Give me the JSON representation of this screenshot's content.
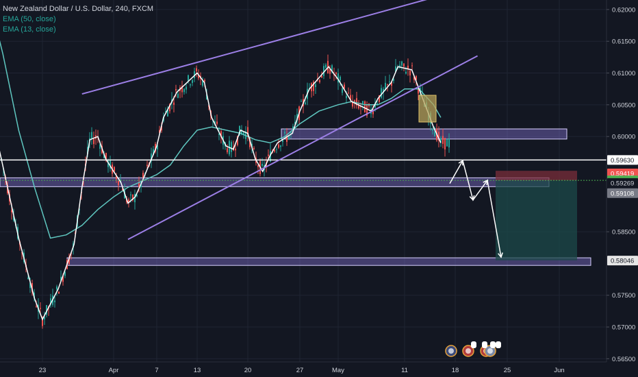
{
  "legend": {
    "title": "New Zealand Dollar / U.S. Dollar, 240, FXCM",
    "ema_slow": "EMA (50, close)",
    "ema_fast": "EMA (13, close)"
  },
  "colors": {
    "background": "#131722",
    "grid": "#1f2433",
    "up": "#26a69a",
    "down": "#ef5350",
    "ema_fast": "#ffffff",
    "ema_slow": "#5fc7c0",
    "channel": "#9c7fe6",
    "zone_fill": "#7e6fc9",
    "stop_zone": "#7a2e3a",
    "target_zone": "#1c4a4a",
    "price_marker": "#b7a15a"
  },
  "chart_data": {
    "type": "candlestick",
    "symbol": "NZDUSD",
    "timeframe": "240",
    "indicators": [
      "EMA (50, close)",
      "EMA (13, close)"
    ],
    "x_tick_labels": [
      "23",
      "Apr",
      "7",
      "13",
      "20",
      "27",
      "May",
      "11",
      "18",
      "25",
      "Jun"
    ],
    "y_tick_labels": [
      "0.62000",
      "0.61500",
      "0.61000",
      "0.60500",
      "0.60000",
      "0.58500",
      "0.57500",
      "0.57000",
      "0.56500"
    ],
    "ylim": [
      0.5645,
      0.6215
    ],
    "price_tags": [
      {
        "label": "0.59630",
        "value": 0.5963,
        "bg": "#ffffff",
        "fg": "#131722"
      },
      {
        "label": "0.59419",
        "value": 0.59419,
        "bg": "#ef5350",
        "fg": "#ffffff"
      },
      {
        "label": "0.59310",
        "value": 0.5931,
        "bg": "#4caf50",
        "fg": "#ffffff"
      },
      {
        "label": "0.59269",
        "value": 0.59269,
        "bg": "#131722",
        "fg": "#d1d4dc"
      },
      {
        "label": "0.59108",
        "value": 0.59108,
        "bg": "#787b86",
        "fg": "#ffffff"
      },
      {
        "label": "0.58046",
        "value": 0.58046,
        "bg": "#e6e6e6",
        "fg": "#131722"
      }
    ],
    "horizontal_lines": [
      0.5963,
      0.5931
    ],
    "zones": [
      {
        "name": "resistance-zone",
        "from": 0.5996,
        "to": 0.6012
      },
      {
        "name": "support-zone",
        "from": 0.5921,
        "to": 0.5935
      },
      {
        "name": "target-zone",
        "from": 0.5797,
        "to": 0.5809
      }
    ],
    "channel_lines": [
      {
        "name": "upper-channel",
        "from": [
          "Mar 28",
          0.6067
        ],
        "to": [
          "May 16",
          0.6222
        ]
      },
      {
        "name": "lower-channel",
        "from": [
          "Apr 3",
          0.5838
        ],
        "to": [
          "May 21",
          0.6127
        ]
      }
    ],
    "position": {
      "entry": 0.5931,
      "stop": 0.5946,
      "target": 0.5805
    },
    "projected_path": [
      0.5926,
      0.5962,
      0.59,
      0.5931,
      0.581
    ],
    "series": [
      {
        "name": "EMA (13, close)",
        "points": [
          [
            "Mar 17",
            0.601
          ],
          [
            "Mar 20",
            0.584
          ],
          [
            "Mar 22",
            0.5745
          ],
          [
            "Mar 23",
            0.5712
          ],
          [
            "Mar 25",
            0.576
          ],
          [
            "Mar 27",
            0.583
          ],
          [
            "Mar 28",
            0.592
          ],
          [
            "Mar 29",
            0.5995
          ],
          [
            "Mar 30",
            0.6
          ],
          [
            "Mar 31",
            0.5965
          ],
          [
            "Apr 1",
            0.5945
          ],
          [
            "Apr 2",
            0.5928
          ],
          [
            "Apr 3",
            0.5895
          ],
          [
            "Apr 4",
            0.5905
          ],
          [
            "Apr 5",
            0.593
          ],
          [
            "Apr 7",
            0.5985
          ],
          [
            "Apr 8",
            0.603
          ],
          [
            "Apr 10",
            0.607
          ],
          [
            "Apr 13",
            0.61
          ],
          [
            "Apr 14",
            0.6085
          ],
          [
            "Apr 15",
            0.603
          ],
          [
            "Apr 17",
            0.5985
          ],
          [
            "Apr 18",
            0.598
          ],
          [
            "Apr 19",
            0.601
          ],
          [
            "Apr 20",
            0.6005
          ],
          [
            "Apr 21",
            0.5965
          ],
          [
            "Apr 22",
            0.5945
          ],
          [
            "Apr 23",
            0.597
          ],
          [
            "Apr 24",
            0.599
          ],
          [
            "Apr 26",
            0.6005
          ],
          [
            "Apr 27",
            0.604
          ],
          [
            "Apr 28",
            0.6075
          ],
          [
            "Apr 30",
            0.611
          ],
          [
            "May 1",
            0.609
          ],
          [
            "May 3",
            0.6055
          ],
          [
            "May 4",
            0.605
          ],
          [
            "May 6",
            0.604
          ],
          [
            "May 7",
            0.606
          ],
          [
            "May 9",
            0.6085
          ],
          [
            "May 10",
            0.611
          ],
          [
            "May 12",
            0.6105
          ],
          [
            "May 13",
            0.6075
          ],
          [
            "May 14",
            0.6045
          ],
          [
            "May 15",
            0.6015
          ],
          [
            "May 16",
            0.599
          ]
        ]
      },
      {
        "name": "EMA (50, close)",
        "points": [
          [
            "Mar 17",
            0.618
          ],
          [
            "Mar 18",
            0.613
          ],
          [
            "Mar 20",
            0.601
          ],
          [
            "Mar 22",
            0.592
          ],
          [
            "Mar 24",
            0.584
          ],
          [
            "Mar 26",
            0.5845
          ],
          [
            "Mar 28",
            0.586
          ],
          [
            "Mar 30",
            0.5885
          ],
          [
            "Apr 1",
            0.5905
          ],
          [
            "Apr 3",
            0.592
          ],
          [
            "Apr 5",
            0.593
          ],
          [
            "Apr 7",
            0.594
          ],
          [
            "Apr 9",
            0.5955
          ],
          [
            "Apr 11",
            0.5985
          ],
          [
            "Apr 13",
            0.601
          ],
          [
            "Apr 15",
            0.6015
          ],
          [
            "Apr 17",
            0.601
          ],
          [
            "Apr 19",
            0.6005
          ],
          [
            "Apr 21",
            0.5995
          ],
          [
            "Apr 23",
            0.599
          ],
          [
            "Apr 25",
            0.6
          ],
          [
            "Apr 27",
            0.602
          ],
          [
            "Apr 29",
            0.604
          ],
          [
            "May 1",
            0.605
          ],
          [
            "May 3",
            0.6055
          ],
          [
            "May 5",
            0.605
          ],
          [
            "May 7",
            0.605
          ],
          [
            "May 9",
            0.606
          ],
          [
            "May 11",
            0.6075
          ],
          [
            "May 13",
            0.6075
          ],
          [
            "May 15",
            0.605
          ],
          [
            "May 16",
            0.603
          ]
        ]
      }
    ],
    "grid": true
  }
}
